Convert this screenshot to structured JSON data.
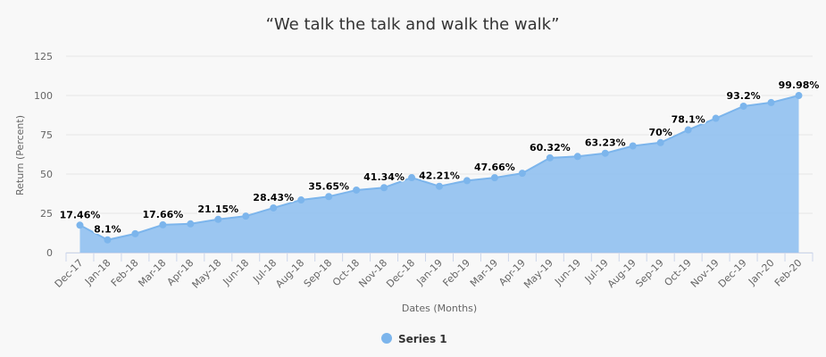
{
  "chart_data": {
    "type": "area",
    "title": "“We talk the talk and walk the walk”",
    "xlabel": "Dates (Months)",
    "ylabel": "Return (Percent)",
    "ylim": [
      0,
      125
    ],
    "yticks": [
      0,
      25,
      50,
      75,
      100,
      125
    ],
    "grid": true,
    "legend_position": "bottom",
    "colors": {
      "fill": "#90c0f0",
      "line": "#7cb5ec",
      "grid": "#e6e6e6",
      "axis": "#ccd6eb"
    },
    "categories": [
      "Dec-17",
      "Jan-18",
      "Feb-18",
      "Mar-18",
      "Apr-18",
      "May-18",
      "Jun-18",
      "Jul-18",
      "Aug-18",
      "Sep-18",
      "Oct-18",
      "Nov-18",
      "Dec-18",
      "Jan-19",
      "Feb-19",
      "Mar-19",
      "Apr-19",
      "May-19",
      "Jun-19",
      "Jul-19",
      "Aug-19",
      "Sep-19",
      "Oct-19",
      "Nov-19",
      "Dec-19",
      "Jan-20",
      "Feb-20"
    ],
    "series": [
      {
        "name": "Series 1",
        "values": [
          17.46,
          8.1,
          12.0,
          17.66,
          18.3,
          21.15,
          23.2,
          28.43,
          33.5,
          35.65,
          39.8,
          41.34,
          47.7,
          42.21,
          45.8,
          47.66,
          50.5,
          60.32,
          61.2,
          63.23,
          67.9,
          70,
          78.1,
          85.5,
          93.2,
          95.5,
          99.98
        ],
        "labels": [
          "17.46%",
          "8.1%",
          "",
          "17.66%",
          "",
          "21.15%",
          "",
          "28.43%",
          "",
          "35.65%",
          "",
          "41.34%",
          "",
          "42.21%",
          "",
          "47.66%",
          "",
          "60.32%",
          "",
          "63.23%",
          "",
          "70%",
          "78.1%",
          "",
          "93.2%",
          "",
          "99.98%"
        ]
      }
    ]
  }
}
